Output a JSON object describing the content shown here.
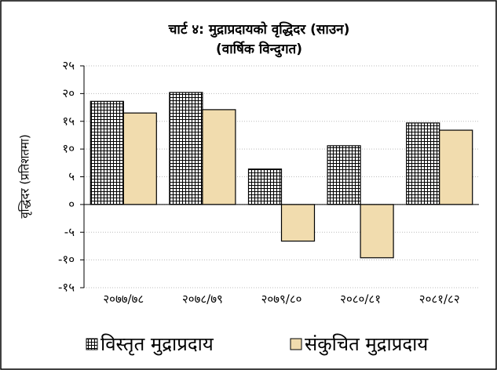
{
  "chart_data": {
    "type": "bar",
    "title": "चार्ट ४: मुद्राप्रदायको वृद्धिदर (साउन)",
    "subtitle": "(वार्षिक विन्दुगत)",
    "y_label": "वृद्धिदर (प्रतिशतमा)",
    "categories": [
      "२०७७/७८",
      "२०७८/७९",
      "२०७९/८०",
      "२०८०/८१",
      "२०८१/८२"
    ],
    "series": [
      {
        "name": "विस्तृत मुद्राप्रदाय",
        "color": "#ffffff",
        "hatch": "grid",
        "values": [
          18.6,
          20.2,
          6.4,
          10.6,
          14.7
        ]
      },
      {
        "name": "संकुचित मुद्राप्रदाय",
        "color": "#f1dcae",
        "values": [
          16.5,
          17.1,
          -6.6,
          -9.6,
          13.4
        ]
      }
    ],
    "ylim": [
      -15,
      25
    ],
    "yticks": [
      {
        "value": -15,
        "label": "-१५"
      },
      {
        "value": -10,
        "label": "-१०"
      },
      {
        "value": -5,
        "label": "-५"
      },
      {
        "value": 0,
        "label": "०"
      },
      {
        "value": 5,
        "label": "५"
      },
      {
        "value": 10,
        "label": "१०"
      },
      {
        "value": 15,
        "label": "१५"
      },
      {
        "value": 20,
        "label": "२०"
      },
      {
        "value": 25,
        "label": "२५"
      }
    ],
    "grid": true
  }
}
